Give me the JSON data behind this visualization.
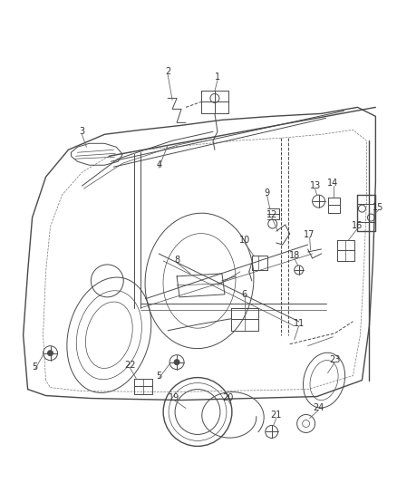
{
  "background_color": "#ffffff",
  "line_color": "#4a4a4a",
  "label_color": "#333333",
  "lw_main": 1.0,
  "lw_med": 0.7,
  "lw_thin": 0.5,
  "figsize": [
    4.38,
    5.33
  ],
  "dpi": 100
}
